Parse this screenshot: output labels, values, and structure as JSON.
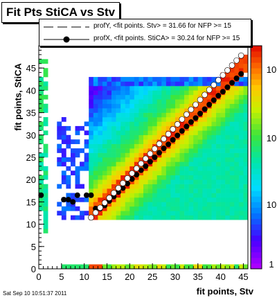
{
  "title": "Fit Pts StiCA vs Stv",
  "xlabel": "fit points, Stv",
  "ylabel": "fit points, StiCA",
  "timestamp": "Sat Sep 10 10:51:37 2011",
  "legend": [
    {
      "label": "profY, <fit points. Stv> =   31.66 for NFP >= 15",
      "marker": "open-circle",
      "line": "dash"
    },
    {
      "label": "profX, <fit points. StiCA> =   30.24 for NFP >= 15",
      "marker": "filled-circle",
      "line": "solid"
    }
  ],
  "chart_data": {
    "type": "heatmap",
    "title": "Fit Pts StiCA vs Stv",
    "xlabel": "fit points, Stv",
    "ylabel": "fit points, StiCA",
    "xlim": [
      0,
      46
    ],
    "ylim": [
      0,
      50
    ],
    "xticks": [
      0,
      5,
      10,
      15,
      20,
      25,
      30,
      35,
      40,
      45
    ],
    "yticks": [
      0,
      5,
      10,
      15,
      20,
      25,
      30,
      35,
      40,
      45
    ],
    "colorbar": {
      "scale": "log",
      "visible_ticks": [
        "1",
        "10",
        "10",
        "10"
      ]
    },
    "series": [
      {
        "name": "profY, <fit points. Stv> = 31.66 for NFP >= 15",
        "marker": "open-circle",
        "points": [
          [
            11.5,
            11.5
          ],
          [
            12.5,
            12.6
          ],
          [
            13.5,
            13.7
          ],
          [
            14.5,
            14.8
          ],
          [
            15.5,
            15.9
          ],
          [
            16.5,
            17.0
          ],
          [
            17.5,
            18.1
          ],
          [
            18.5,
            19.2
          ],
          [
            19.5,
            20.3
          ],
          [
            20.5,
            21.4
          ],
          [
            21.5,
            22.5
          ],
          [
            22.5,
            23.6
          ],
          [
            23.5,
            24.7
          ],
          [
            24.5,
            25.8
          ],
          [
            25.5,
            26.9
          ],
          [
            26.5,
            28.0
          ],
          [
            27.5,
            29.1
          ],
          [
            28.5,
            30.2
          ],
          [
            29.5,
            31.3
          ],
          [
            30.5,
            32.4
          ],
          [
            31.5,
            33.5
          ],
          [
            32.5,
            34.6
          ],
          [
            33.5,
            35.7
          ],
          [
            34.5,
            36.8
          ],
          [
            35.5,
            37.9
          ],
          [
            36.5,
            39.0
          ],
          [
            37.5,
            40.1
          ],
          [
            38.5,
            41.2
          ],
          [
            39.5,
            42.3
          ],
          [
            40.5,
            43.4
          ],
          [
            41.5,
            44.5
          ],
          [
            42.5,
            45.6
          ],
          [
            43.5,
            46.7
          ],
          [
            44.5,
            47.8
          ]
        ]
      },
      {
        "name": "profX, <fit points. StiCA> = 30.24 for NFP >= 15",
        "marker": "filled-circle",
        "points": [
          [
            0.5,
            16.5
          ],
          [
            5.5,
            15.5
          ],
          [
            6.5,
            15.5
          ],
          [
            7.5,
            15.0
          ],
          [
            8.5,
            16.5
          ],
          [
            10.5,
            16.5
          ],
          [
            11.5,
            16.5
          ],
          [
            12.5,
            13.5
          ],
          [
            13.5,
            13.5
          ],
          [
            14.5,
            14.2
          ],
          [
            15.5,
            15.2
          ],
          [
            16.5,
            16.2
          ],
          [
            17.5,
            17.2
          ],
          [
            18.5,
            18.1
          ],
          [
            19.5,
            19.1
          ],
          [
            20.5,
            20.1
          ],
          [
            21.5,
            21.1
          ],
          [
            22.5,
            22.1
          ],
          [
            23.5,
            23.0
          ],
          [
            24.5,
            24.0
          ],
          [
            25.5,
            25.0
          ],
          [
            26.5,
            26.0
          ],
          [
            27.5,
            27.0
          ],
          [
            28.5,
            27.9
          ],
          [
            29.5,
            28.9
          ],
          [
            30.5,
            29.9
          ],
          [
            31.5,
            30.9
          ],
          [
            32.5,
            31.9
          ],
          [
            33.5,
            32.9
          ],
          [
            34.5,
            33.8
          ],
          [
            35.5,
            34.8
          ],
          [
            36.5,
            35.8
          ],
          [
            37.5,
            36.8
          ],
          [
            38.5,
            37.8
          ],
          [
            39.5,
            38.8
          ],
          [
            40.5,
            39.7
          ],
          [
            41.5,
            40.7
          ],
          [
            42.5,
            41.7
          ],
          [
            43.5,
            42.7
          ],
          [
            44.5,
            43.7
          ]
        ]
      }
    ]
  }
}
